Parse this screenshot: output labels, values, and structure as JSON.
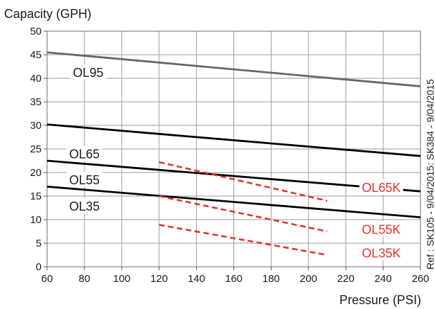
{
  "chart_data": {
    "type": "line",
    "ylabel": "Capacity (GPH)",
    "xlabel": "Pressure (PSI)",
    "xlim": [
      60,
      260
    ],
    "ylim": [
      0,
      50
    ],
    "x_ticks": [
      60,
      80,
      100,
      120,
      140,
      160,
      180,
      200,
      220,
      240,
      260
    ],
    "y_ticks": [
      0,
      5,
      10,
      15,
      20,
      25,
      30,
      35,
      40,
      45,
      50
    ],
    "grid": true,
    "reference_note": "Ref : SK105 - 9/04/2015: SK384 - 9/04/2015",
    "series": [
      {
        "name": "OL95",
        "color": "#666666",
        "style": "solid",
        "x": [
          60,
          260
        ],
        "y": [
          45.5,
          38.3
        ]
      },
      {
        "name": "OL65",
        "color": "#000000",
        "style": "solid",
        "x": [
          60,
          260
        ],
        "y": [
          30.2,
          23.5
        ]
      },
      {
        "name": "OL55",
        "color": "#000000",
        "style": "solid",
        "x": [
          60,
          260
        ],
        "y": [
          22.5,
          16.0
        ]
      },
      {
        "name": "OL35",
        "color": "#000000",
        "style": "solid",
        "x": [
          60,
          260
        ],
        "y": [
          17.0,
          10.5
        ]
      },
      {
        "name": "OL65K",
        "color": "#e8302a",
        "style": "dashed",
        "x": [
          120,
          210
        ],
        "y": [
          22.2,
          14.0
        ]
      },
      {
        "name": "OL55K",
        "color": "#e8302a",
        "style": "dashed",
        "x": [
          120,
          210
        ],
        "y": [
          15.0,
          7.5
        ]
      },
      {
        "name": "OL35K",
        "color": "#e8302a",
        "style": "dashed",
        "x": [
          120,
          210
        ],
        "y": [
          8.9,
          2.5
        ]
      }
    ],
    "labels": [
      {
        "text": "OL95",
        "series": "OL95",
        "x": 82,
        "y": 41.2
      },
      {
        "text": "OL65",
        "series": "OL65",
        "x": 80,
        "y": 23.9
      },
      {
        "text": "OL55",
        "series": "OL55",
        "x": 80,
        "y": 18.4
      },
      {
        "text": "OL35",
        "series": "OL35",
        "x": 80,
        "y": 12.8
      },
      {
        "text": "OL65K",
        "series": "OL65K",
        "x": 239,
        "y": 16.8
      },
      {
        "text": "OL55K",
        "series": "OL55K",
        "x": 239,
        "y": 7.9
      },
      {
        "text": "OL35K",
        "series": "OL35K",
        "x": 239,
        "y": 2.9
      }
    ]
  }
}
